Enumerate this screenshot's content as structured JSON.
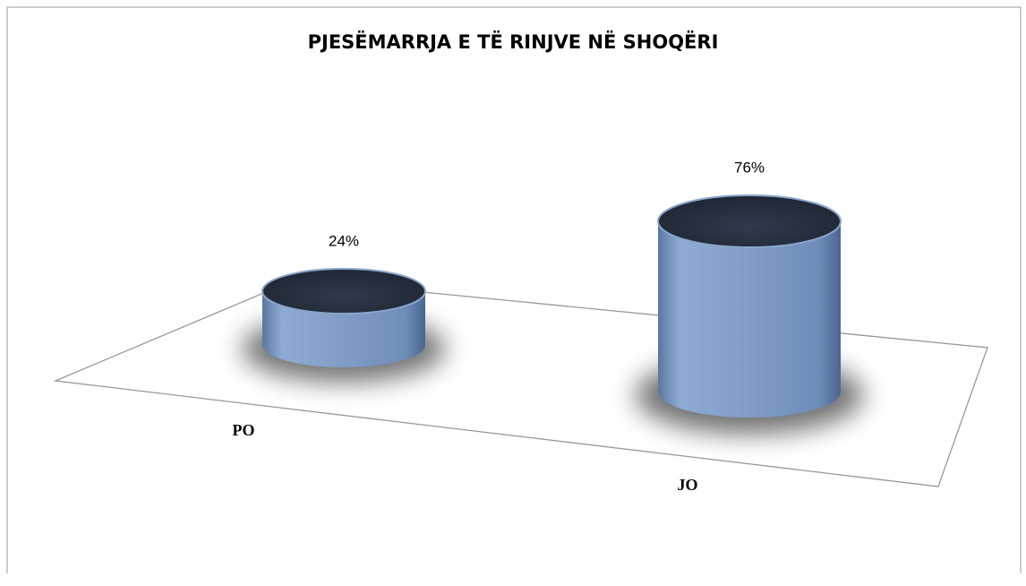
{
  "chart_data": {
    "type": "bar",
    "title": "PJESËMARRJA E TË RINJVE NË SHOQËRI",
    "categories": [
      "PO",
      "JO"
    ],
    "values": [
      24,
      76
    ],
    "value_labels": [
      "24%",
      "76%"
    ],
    "color": "#7f9dc6"
  }
}
